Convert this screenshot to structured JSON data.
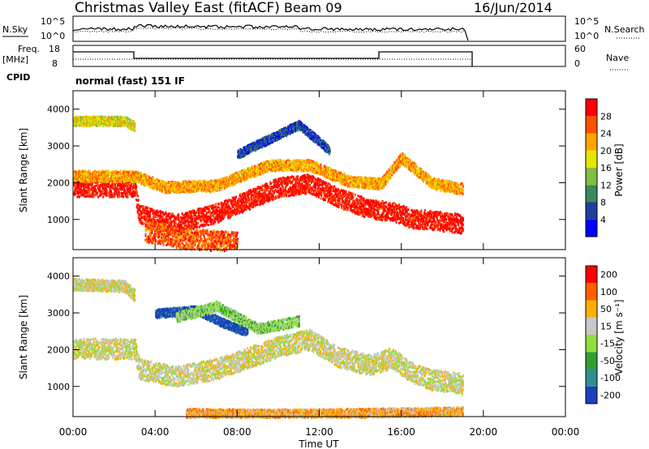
{
  "title": {
    "station": "Christmas Valley East (fitACF)",
    "beam": "Beam 09",
    "date": "16/Jun/2014"
  },
  "top_panels": {
    "nsky_label": "N.Sky",
    "nsky_ticks": [
      "10^5",
      "10^0"
    ],
    "nsearch_label": "N.Search",
    "freq_label": "Freq.",
    "freq_unit": "[MHz]",
    "freq_ticks": [
      "18",
      "8"
    ],
    "nave_label": "Nave",
    "nave_ticks": [
      "60",
      "0"
    ],
    "cpid_label": "CPID",
    "cpid_value": "normal (fast) 151 IF"
  },
  "chart_data": [
    {
      "type": "heatmap",
      "name": "power",
      "ylabel": "Slant Range [km]",
      "yticks": [
        "4000",
        "3000",
        "2000",
        "1000"
      ],
      "ylim": [
        180,
        4500
      ],
      "xlim": [
        0,
        24
      ],
      "colorbar_label": "Power [dB]",
      "colorbar_ticks": [
        "28",
        "24",
        "20",
        "16",
        "12",
        "8",
        "4"
      ],
      "colors": [
        "#0000ff",
        "#1f3fa0",
        "#3a8a5a",
        "#7fbf3f",
        "#e6e600",
        "#ffa500",
        "#ff5000",
        "#ff0000"
      ],
      "bands": [
        {
          "t": [
            0.0,
            3.0,
            3.2,
            5.0,
            7.0,
            8.5,
            10.0,
            11.5,
            13.0,
            14.5,
            15.5,
            16.5,
            17.5,
            19.0
          ],
          "r": [
            1900,
            1900,
            1150,
            900,
            1200,
            1550,
            1900,
            2000,
            1600,
            1300,
            1250,
            1050,
            1000,
            900
          ],
          "width": 260,
          "level": 7
        },
        {
          "t": [
            0.0,
            3.0,
            4.5,
            7.0,
            9.5,
            11.5,
            13.5,
            15.0,
            16.0,
            17.5,
            19.0
          ],
          "r": [
            2200,
            2200,
            1900,
            1950,
            2500,
            2500,
            2050,
            2000,
            2700,
            2000,
            1850
          ],
          "width": 150,
          "level": 5
        },
        {
          "t": [
            0.0,
            2.5,
            3.0
          ],
          "r": [
            3700,
            3700,
            3550
          ],
          "width": 130,
          "level": 4
        },
        {
          "t": [
            3.5,
            5.5,
            7.0,
            8.0
          ],
          "r": [
            700,
            500,
            450,
            400
          ],
          "width": 280,
          "level": 6
        },
        {
          "t": [
            8.0,
            9.5,
            11.0,
            12.5
          ],
          "r": [
            2800,
            3200,
            3600,
            2900
          ],
          "width": 120,
          "level": 1
        }
      ]
    },
    {
      "type": "heatmap",
      "name": "velocity",
      "ylabel": "Slant Range [km]",
      "yticks": [
        "4000",
        "3000",
        "2000",
        "1000"
      ],
      "ylim": [
        180,
        4500
      ],
      "xlim": [
        0,
        24
      ],
      "xlabel": "Time UT",
      "xticks": [
        "00:00",
        "04:00",
        "08:00",
        "12:00",
        "16:00",
        "20:00",
        "00:00"
      ],
      "colorbar_label": "Velocity [m s⁻¹]",
      "colorbar_ticks": [
        "200",
        "100",
        "50",
        "15",
        "-15",
        "-50",
        "-100",
        "-200"
      ],
      "colors": [
        "#1a3fbf",
        "#2f8f8f",
        "#2f9f2f",
        "#8fdf3f",
        "#c8c8c8",
        "#ffb000",
        "#ff6000",
        "#ff0000"
      ],
      "bands": [
        {
          "t": [
            0.0,
            3.0,
            3.2,
            5.0,
            7.0,
            8.5,
            10.0,
            11.5,
            13.0,
            14.5,
            15.5,
            16.5,
            17.5,
            19.0
          ],
          "r": [
            2050,
            2050,
            1500,
            1300,
            1500,
            1800,
            2100,
            2300,
            1800,
            1600,
            1800,
            1400,
            1200,
            1100
          ],
          "width": 280,
          "level": 4
        },
        {
          "t": [
            0.0,
            2.5,
            3.0
          ],
          "r": [
            3800,
            3750,
            3500
          ],
          "width": 160,
          "level": 4
        },
        {
          "t": [
            4.0,
            6.0,
            7.5,
            8.5
          ],
          "r": [
            3000,
            3100,
            2700,
            2500
          ],
          "width": 120,
          "level": 0
        },
        {
          "t": [
            5.0,
            7.0,
            9.0,
            11.0
          ],
          "r": [
            2900,
            3200,
            2600,
            2800
          ],
          "width": 140,
          "level": 3
        },
        {
          "t": [
            5.5,
            10.0,
            14.0,
            19.0
          ],
          "r": [
            300,
            280,
            300,
            350
          ],
          "width": 120,
          "level": 5
        }
      ]
    }
  ]
}
